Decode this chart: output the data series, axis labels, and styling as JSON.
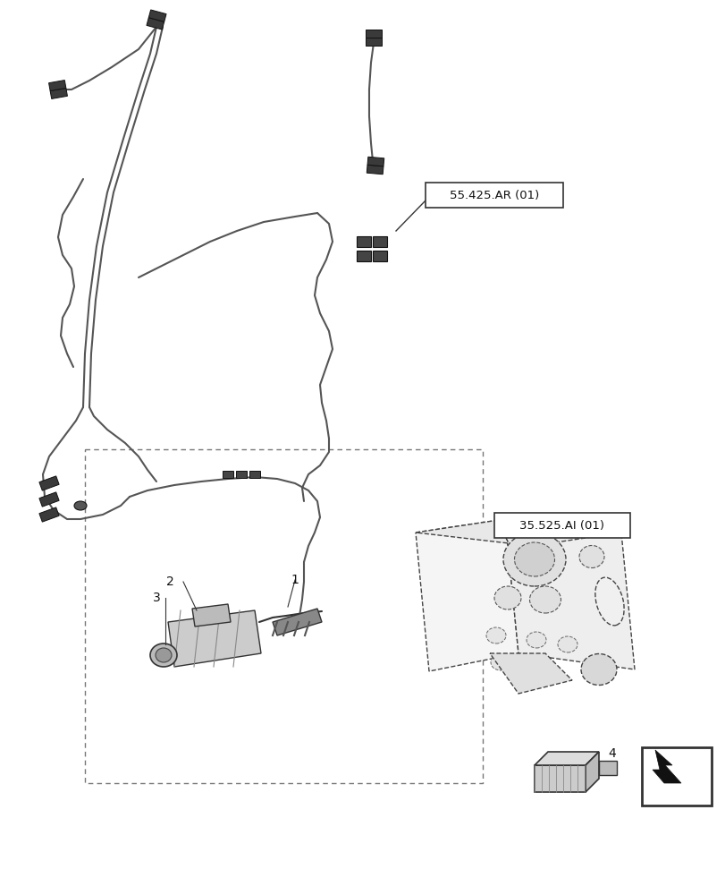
{
  "background_color": "#ffffff",
  "line_color": "#2a2a2a",
  "text_color": "#111111",
  "label_55": "55.425.AR (01)",
  "label_35": "35.525.AI (01)",
  "figsize": [
    8.12,
    10.0
  ],
  "dpi": 100,
  "xlim": [
    0,
    812
  ],
  "ylim": [
    0,
    1000
  ],
  "harness_wire_lw": 1.8,
  "harness_wire_color": "#555555",
  "connector_face_color": "#222222",
  "dashed_line_color": "#666666",
  "ref_box_edge_color": "#333333",
  "valve_block_face": "#f0f0f0",
  "valve_block_edge": "#333333",
  "item4_face": "#cccccc",
  "item4_edge": "#333333"
}
